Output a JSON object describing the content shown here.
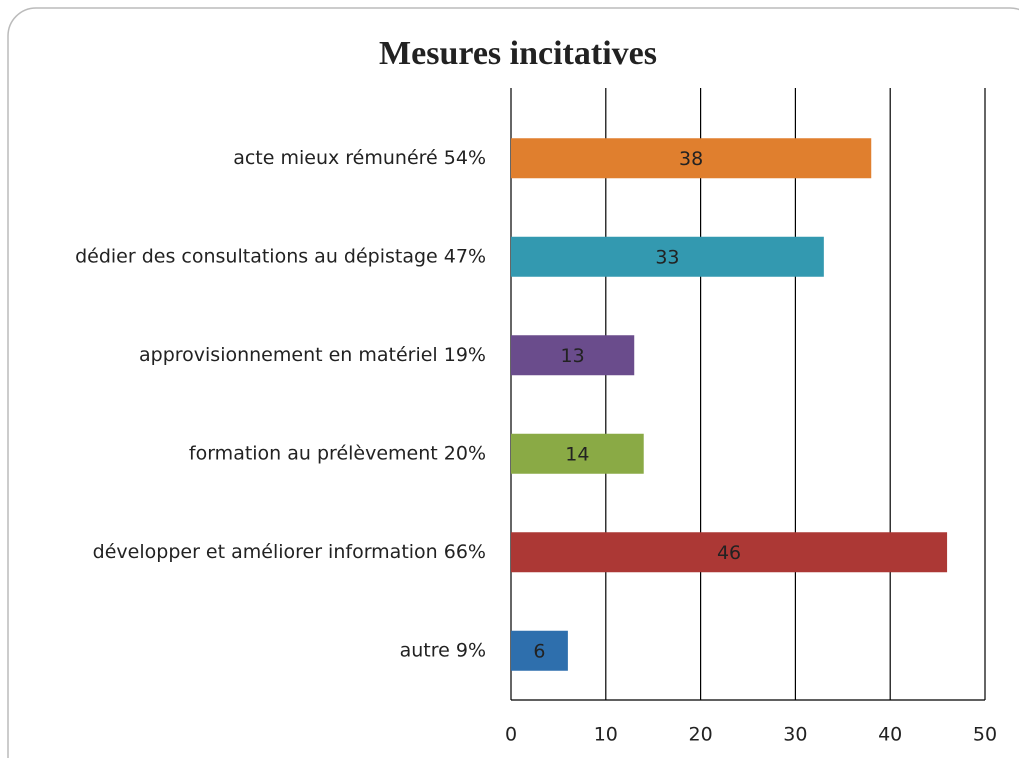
{
  "chart_data": {
    "type": "bar",
    "orientation": "horizontal",
    "title": "Mesures incitatives",
    "categories": [
      "acte mieux rémunéré 54%",
      "dédier des consultations au dépistage 47%",
      "approvisionnement en matériel 19%",
      "formation au prélèvement 20%",
      "développer et améliorer information 66%",
      "autre 9%"
    ],
    "values": [
      38,
      33,
      13,
      14,
      46,
      6
    ],
    "colors": [
      "#e07f2e",
      "#3399b0",
      "#6a4c8c",
      "#8aaa45",
      "#ac3835",
      "#2e6fad"
    ],
    "xlim": [
      0,
      50
    ],
    "xticks": [
      0,
      10,
      20,
      30,
      40,
      50
    ],
    "grid": true
  }
}
